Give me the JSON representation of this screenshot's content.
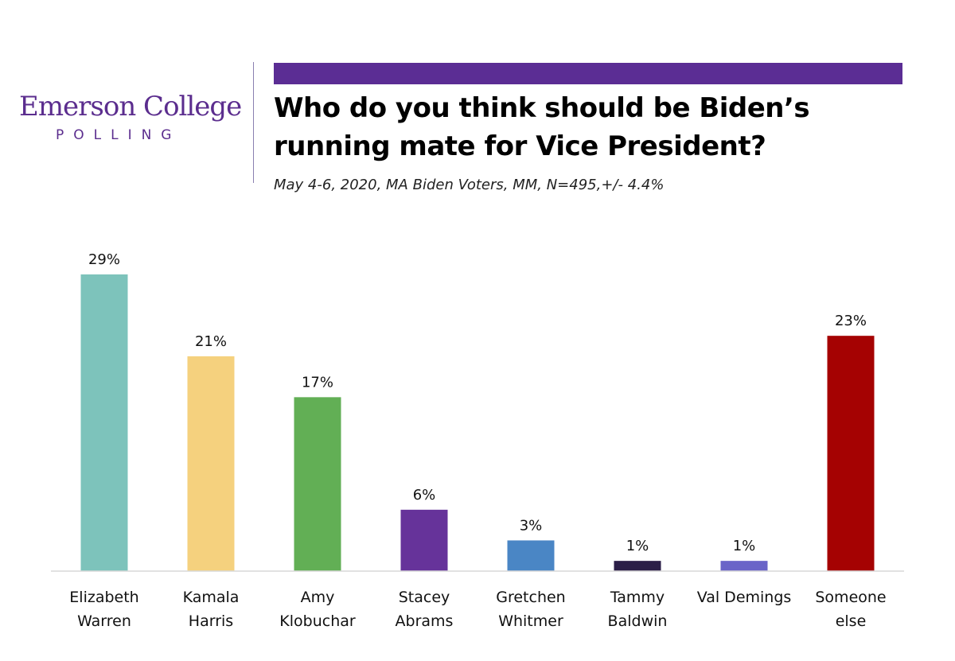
{
  "header": {
    "logo_name": "Emerson College",
    "logo_sub": "POLLING",
    "title": "Who do you think should be Biden’s running mate for Vice President?",
    "subtitle": "May 4-6, 2020, MA Biden Voters, MM,  N=495,+/- 4.4%"
  },
  "colors": {
    "brand_purple": "#5b2d94",
    "axis": "#d9d9d9"
  },
  "chart_data": {
    "type": "bar",
    "title": "Who do you think should be Biden’s running mate for Vice President?",
    "subtitle": "May 4-6, 2020, MA Biden Voters, MM,  N=495,+/- 4.4%",
    "xlabel": "",
    "ylabel": "",
    "ylim": [
      0,
      29
    ],
    "grid": false,
    "categories": [
      [
        "Elizabeth",
        "Warren"
      ],
      [
        "Kamala",
        "Harris"
      ],
      [
        "Amy",
        "Klobuchar"
      ],
      [
        "Stacey",
        "Abrams"
      ],
      [
        "Gretchen",
        "Whitmer"
      ],
      [
        "Tammy",
        "Baldwin"
      ],
      [
        "Val Demings"
      ],
      [
        "Someone",
        "else"
      ]
    ],
    "values": [
      29,
      21,
      17,
      6,
      3,
      1,
      1,
      23
    ],
    "value_labels": [
      "29%",
      "21%",
      "17%",
      "6%",
      "3%",
      "1%",
      "1%",
      "23%"
    ],
    "bar_colors": [
      "#7dc3bb",
      "#f5d17e",
      "#62af55",
      "#66339a",
      "#4a86c5",
      "#2b1e47",
      "#6a64c8",
      "#a50202"
    ]
  }
}
